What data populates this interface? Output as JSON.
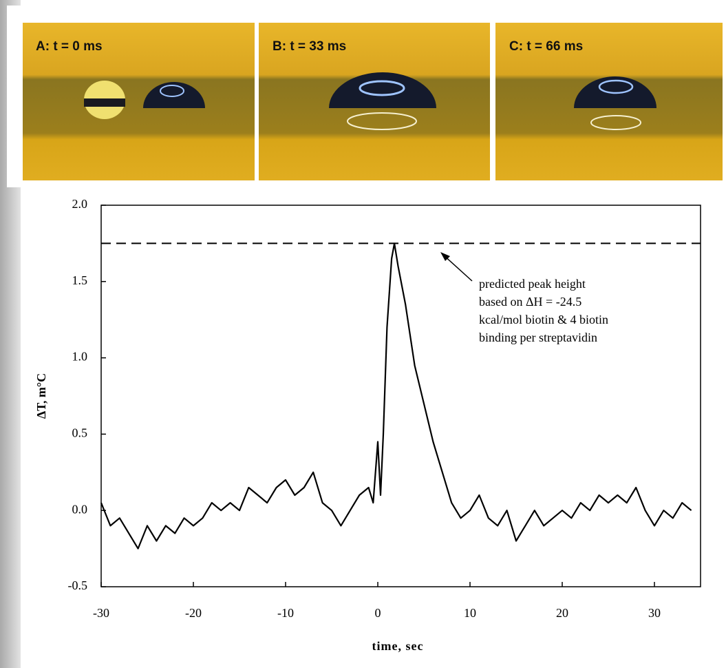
{
  "photos": [
    {
      "label": "A: t = 0 ms"
    },
    {
      "label": "B: t = 33 ms"
    },
    {
      "label": "C: t = 66 ms"
    }
  ],
  "chart_data": {
    "type": "line",
    "xlabel": "time, sec",
    "ylabel": "ΔT, m°C",
    "annotation": [
      "predicted peak height",
      "based on ΔH = -24.5",
      "kcal/mol biotin & 4 biotin",
      "binding per streptavidin"
    ],
    "reference_line": 1.75,
    "xlim": [
      -30,
      35
    ],
    "ylim": [
      -0.5,
      2
    ],
    "xticks": [
      -30,
      -20,
      -10,
      0,
      10,
      20,
      30
    ],
    "yticks": [
      -0.5,
      {
        "value": 0,
        "label": "0.0"
      },
      0.5,
      {
        "value": 1,
        "label": "1.0"
      },
      1.5,
      {
        "value": 2,
        "label": "2.0"
      }
    ],
    "series": [
      {
        "color": "#000000",
        "x": [
          -30,
          -29,
          -28,
          -27,
          -26,
          -25,
          -24,
          -23,
          -22,
          -21,
          -20,
          -19,
          -18,
          -17,
          -16,
          -15,
          -14,
          -13,
          -12,
          -11,
          -10,
          -9,
          -8,
          -7,
          -6,
          -5,
          -4,
          -3,
          -2,
          -1,
          -0.5,
          0,
          0.3,
          0.6,
          1,
          1.5,
          1.8,
          2.2,
          3,
          4,
          5,
          6,
          7,
          8,
          9,
          10,
          11,
          12,
          13,
          14,
          15,
          16,
          17,
          18,
          19,
          20,
          21,
          22,
          23,
          24,
          25,
          26,
          27,
          28,
          29,
          30,
          31,
          32,
          33,
          34
        ],
        "values": [
          0.05,
          -0.1,
          -0.05,
          -0.15,
          -0.25,
          -0.1,
          -0.2,
          -0.1,
          -0.15,
          -0.05,
          -0.1,
          -0.05,
          0.05,
          0,
          0.05,
          0,
          0.15,
          0.1,
          0.05,
          0.15,
          0.2,
          0.1,
          0.15,
          0.25,
          0.05,
          0,
          -0.1,
          0,
          0.1,
          0.15,
          0.05,
          0.45,
          0.1,
          0.5,
          1.2,
          1.65,
          1.75,
          1.6,
          1.35,
          0.95,
          0.7,
          0.45,
          0.25,
          0.05,
          -0.05,
          0,
          0.1,
          -0.05,
          -0.1,
          0,
          -0.2,
          -0.1,
          0,
          -0.1,
          -0.05,
          0,
          -0.05,
          0.05,
          0,
          0.1,
          0.05,
          0.1,
          0.05,
          0.15,
          0,
          -0.1,
          0,
          -0.05,
          0.05,
          0
        ]
      }
    ]
  }
}
